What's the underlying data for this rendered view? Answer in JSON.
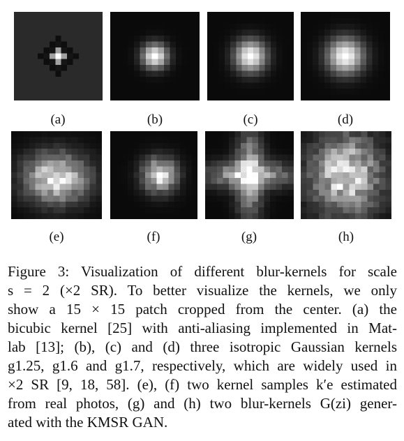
{
  "figure": {
    "row1_labels": [
      "(a)",
      "(b)",
      "(c)",
      "(d)"
    ],
    "row2_labels": [
      "(e)",
      "(f)",
      "(g)",
      "(h)"
    ],
    "caption_lines": [
      "Figure 3: Visualization of different blur-kernels for scale",
      "s = 2 (×2 SR). To better visualize the kernels, we only",
      "show a 15 × 15 patch cropped from the center. (a) the",
      "bicubic kernel [25] with anti-aliasing implemented in Mat-",
      "lab [13]; (b), (c) and (d) three isotropic Gaussian kernels",
      "g1.25, g1.6 and g1.7, respectively, which are widely used in",
      "×2 SR [9, 18, 58]. (e), (f) two kernel samples k′e estimated",
      "from real photos, (g) and (h) two blur-kernels G(zi) gener-",
      "ated with the KMSR GAN."
    ]
  }
}
